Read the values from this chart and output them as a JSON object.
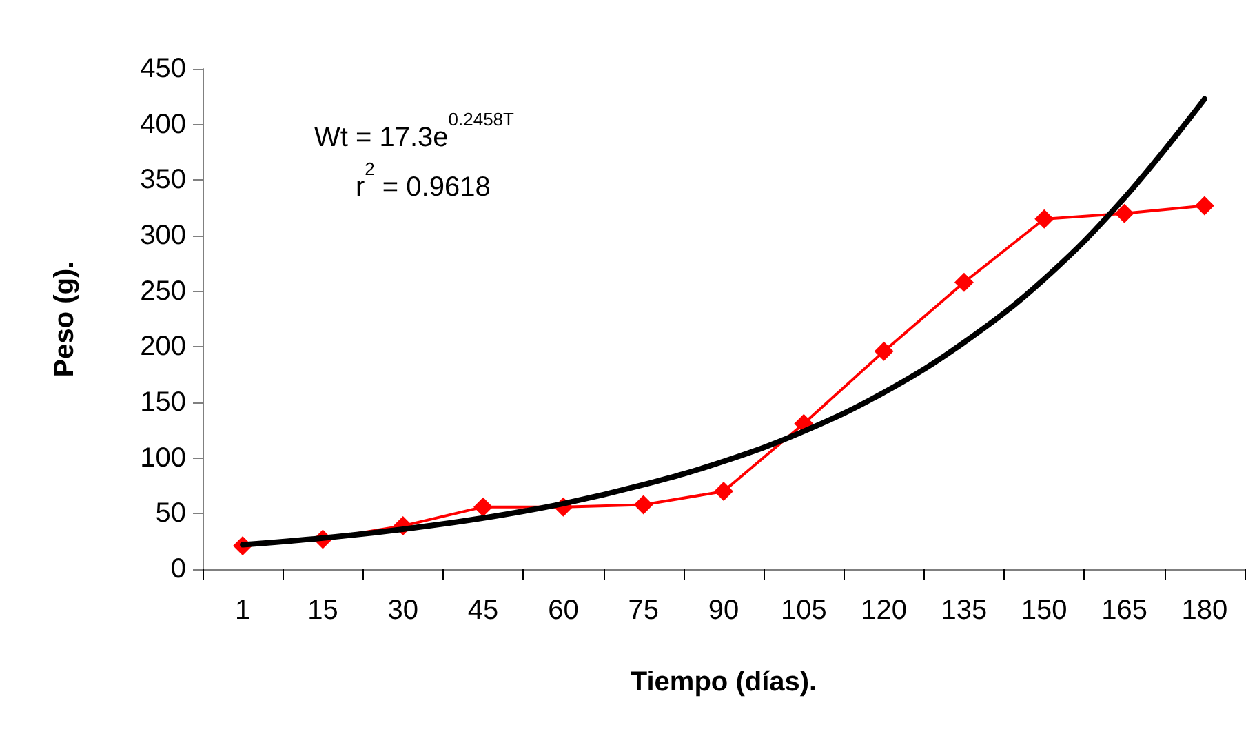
{
  "chart_data": {
    "type": "line",
    "xlabel": "Tiempo (días).",
    "ylabel": "Peso (g).",
    "categories": [
      "1",
      "15",
      "30",
      "45",
      "60",
      "75",
      "90",
      "105",
      "120",
      "135",
      "150",
      "165",
      "180"
    ],
    "series": [
      {
        "color": "#ff0000",
        "marker": "diamond",
        "values": [
          21,
          27,
          39,
          56,
          56,
          58,
          70,
          131,
          196,
          258,
          315,
          320,
          327
        ]
      },
      {
        "type": "line",
        "color": "#000000",
        "marker": "none",
        "x": [
          "1",
          "15",
          "30",
          "45",
          "60",
          "75",
          "90",
          "105",
          "120",
          "135",
          "150",
          "165",
          "180"
        ],
        "values": [
          22,
          28,
          36,
          46,
          59,
          76,
          97,
          124,
          159,
          204,
          261,
          334,
          423
        ]
      }
    ],
    "ylim": [
      0,
      450
    ],
    "yticks": [
      0,
      50,
      100,
      150,
      200,
      250,
      300,
      350,
      400,
      450
    ],
    "annotations": [
      "Wt = 17.3e$^{0.2458T}$",
      "r$^{2}$ = 0.9618"
    ],
    "line_style": "solid"
  }
}
